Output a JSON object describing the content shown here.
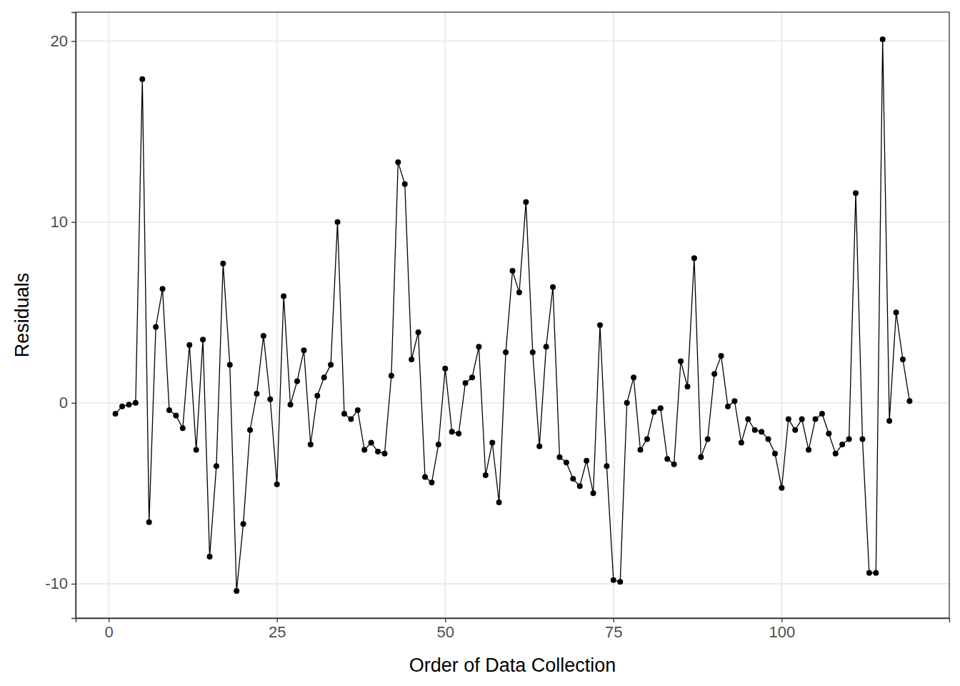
{
  "chart_data": {
    "type": "line",
    "marker": "circle",
    "color": "#000000",
    "grid": true,
    "x_label": "Order of Data Collection",
    "y_label": "Residuals",
    "x": [
      1,
      2,
      3,
      4,
      5,
      6,
      7,
      8,
      9,
      10,
      11,
      12,
      13,
      14,
      15,
      16,
      17,
      18,
      19,
      20,
      21,
      22,
      23,
      24,
      25,
      26,
      27,
      28,
      29,
      30,
      31,
      32,
      33,
      34,
      35,
      36,
      37,
      38,
      39,
      40,
      41,
      42,
      43,
      44,
      45,
      46,
      47,
      48,
      49,
      50,
      51,
      52,
      53,
      54,
      55,
      56,
      57,
      58,
      59,
      60,
      61,
      62,
      63,
      64,
      65,
      66,
      67,
      68,
      69,
      70,
      71,
      72,
      73,
      74,
      75,
      76,
      77,
      78,
      79,
      80,
      81,
      82,
      83,
      84,
      85,
      86,
      87,
      88,
      89,
      90,
      91,
      92,
      93,
      94,
      95,
      96,
      97,
      98,
      99,
      100,
      101,
      102,
      103,
      104,
      105,
      106,
      107,
      108,
      109,
      110,
      111,
      112,
      113,
      114,
      115,
      116,
      117,
      118,
      119
    ],
    "values": [
      -0.6,
      -0.2,
      -0.1,
      0.0,
      17.9,
      -6.6,
      4.2,
      6.3,
      -0.4,
      -0.7,
      -1.4,
      3.2,
      -2.6,
      3.5,
      -8.5,
      -3.5,
      7.7,
      2.1,
      -10.4,
      -6.7,
      -1.5,
      0.5,
      3.7,
      0.2,
      -4.5,
      5.9,
      -0.1,
      1.2,
      2.9,
      -2.3,
      0.4,
      1.4,
      2.1,
      10.0,
      -0.6,
      -0.9,
      -0.4,
      -2.6,
      -2.2,
      -2.7,
      -2.8,
      1.5,
      13.3,
      12.1,
      2.4,
      3.9,
      -4.1,
      -4.4,
      -2.3,
      1.9,
      -1.6,
      -1.7,
      1.1,
      1.4,
      3.1,
      -4.0,
      -2.2,
      -5.5,
      2.8,
      7.3,
      6.1,
      11.1,
      2.8,
      -2.4,
      3.1,
      6.4,
      -3.0,
      -3.3,
      -4.2,
      -4.6,
      -3.2,
      -5.0,
      4.3,
      -3.5,
      -9.8,
      -9.9,
      0.0,
      1.4,
      -2.6,
      -2.0,
      -0.5,
      -0.3,
      -3.1,
      -3.4,
      2.3,
      0.9,
      8.0,
      -3.0,
      -2.0,
      1.6,
      2.6,
      -0.2,
      0.1,
      -2.2,
      -0.9,
      -1.5,
      -1.6,
      -2.0,
      -2.8,
      -4.7,
      -0.9,
      -1.5,
      -0.9,
      -2.6,
      -0.9,
      -0.6,
      -1.7,
      -2.8,
      -2.3,
      -2.0,
      11.6,
      -2.0,
      -9.4,
      -9.4,
      20.1,
      -1.0,
      5.0,
      2.4,
      0.1
    ],
    "xlim": [
      -4.9,
      124.9
    ],
    "ylim": [
      -11.9,
      21.6
    ],
    "xticks": [
      0,
      25,
      50,
      75,
      100
    ],
    "yticks": [
      -10,
      0,
      10,
      20
    ]
  }
}
